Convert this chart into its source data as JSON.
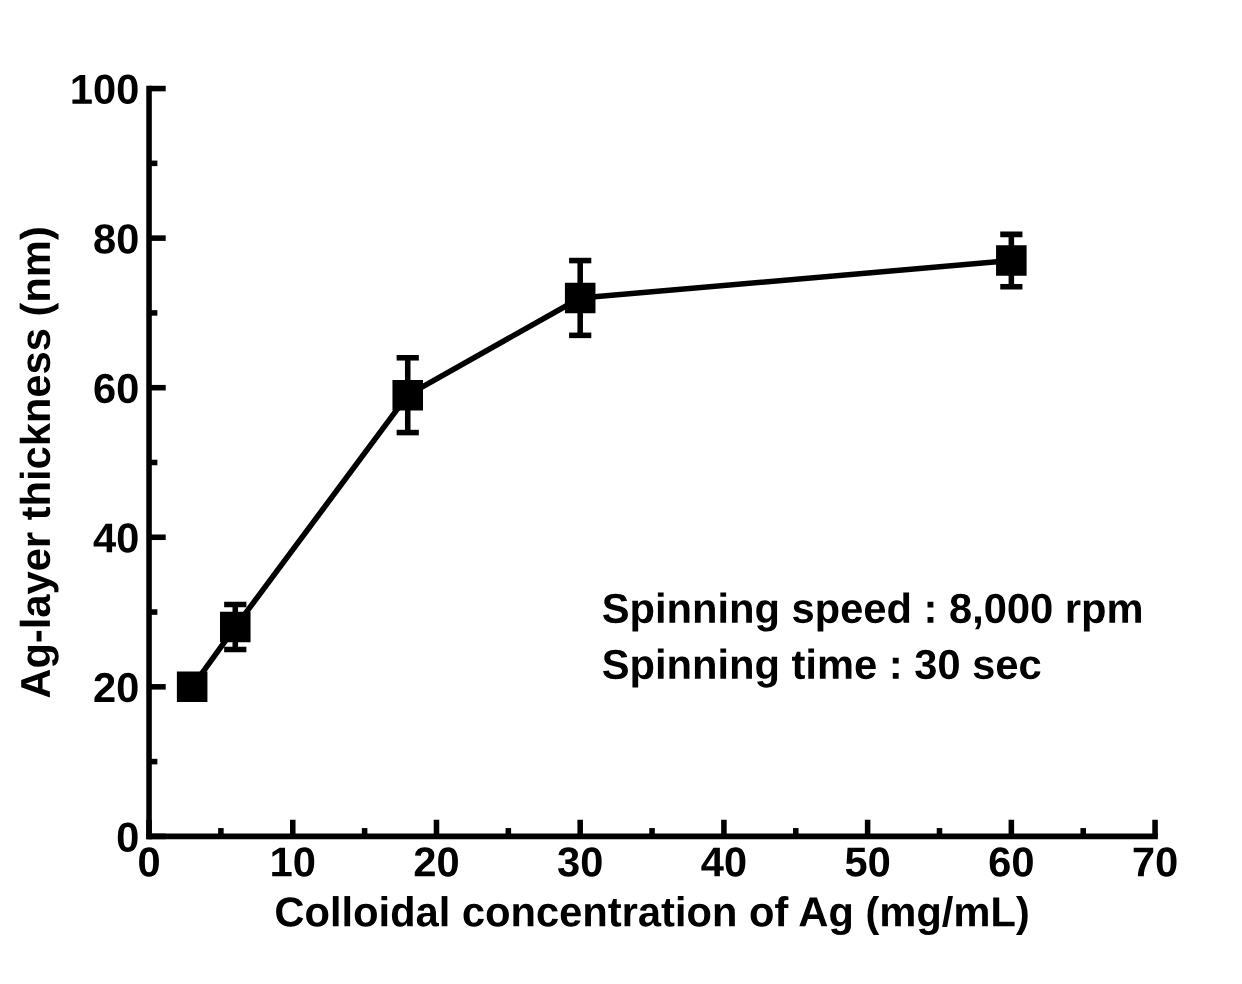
{
  "chart_data": {
    "type": "line",
    "xlabel": "Colloidal concentration of Ag (mg/mL)",
    "ylabel": "Ag-layer thickness (nm)",
    "x": [
      3,
      6,
      18,
      30,
      60
    ],
    "series": [
      {
        "color": "#000000",
        "values": [
          20,
          28,
          59,
          72,
          77
        ],
        "errors": [
          1.5,
          3,
          5,
          5,
          3.5
        ]
      }
    ],
    "xlim": [
      0,
      70
    ],
    "xticks": [
      0,
      10,
      20,
      30,
      40,
      50,
      60,
      70
    ],
    "ylim": [
      0,
      100
    ],
    "yticks": [
      0,
      20,
      40,
      60,
      80,
      100
    ],
    "marker": "square",
    "line_style": "solid",
    "grid": false,
    "legend": false,
    "annotations": [
      "Spinning speed : 8,000 rpm",
      "Spinning time : 30 sec"
    ]
  }
}
